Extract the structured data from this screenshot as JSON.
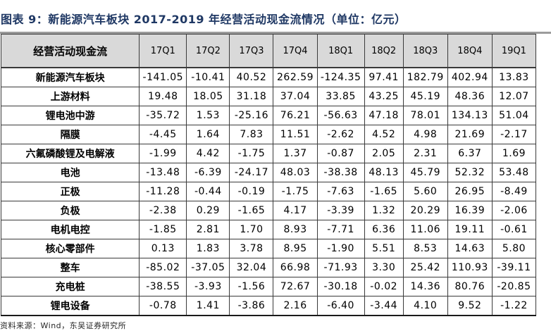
{
  "title": "图表 9：新能源汽车板块 2017-2019 年经营活动现金流情况（单位：亿元）",
  "source_note": "资料来源：Wind，东吴证券研究所",
  "colors": {
    "title_navy": "#1F3864",
    "header_bg": "#D9D9D9",
    "border_dark": "#3a3a3a",
    "rule_gray": "#9c9c9c"
  },
  "table": {
    "header_label": "经营活动现金流",
    "columns": [
      "17Q1",
      "17Q2",
      "17Q3",
      "17Q4",
      "18Q1",
      "18Q2",
      "18Q3",
      "18Q4",
      "19Q1"
    ],
    "rows": [
      {
        "label": "新能源汽车板块",
        "values": [
          "-141.05",
          "-10.41",
          "40.52",
          "262.59",
          "-124.35",
          "97.41",
          "182.79",
          "402.94",
          "13.83"
        ]
      },
      {
        "label": "上游材料",
        "values": [
          "19.48",
          "18.05",
          "31.18",
          "37.04",
          "33.85",
          "43.25",
          "45.19",
          "48.36",
          "12.07"
        ]
      },
      {
        "label": "锂电池中游",
        "values": [
          "-35.72",
          "1.53",
          "-25.16",
          "76.21",
          "-56.63",
          "47.18",
          "78.01",
          "134.13",
          "51.04"
        ]
      },
      {
        "label": "隔膜",
        "values": [
          "-4.45",
          "1.64",
          "7.83",
          "11.51",
          "-2.62",
          "4.52",
          "4.98",
          "21.69",
          "-2.17"
        ]
      },
      {
        "label": "六氟磷酸锂及电解液",
        "values": [
          "-1.99",
          "4.42",
          "-1.75",
          "1.37",
          "-0.87",
          "2.05",
          "2.31",
          "6.37",
          "1.69"
        ]
      },
      {
        "label": "电池",
        "values": [
          "-13.48",
          "-6.39",
          "-24.17",
          "48.03",
          "-38.38",
          "48.13",
          "45.79",
          "52.32",
          "53.48"
        ]
      },
      {
        "label": "正极",
        "values": [
          "-11.28",
          "-0.44",
          "-0.19",
          "-1.75",
          "-7.63",
          "-1.65",
          "5.60",
          "26.95",
          "-8.49"
        ]
      },
      {
        "label": "负极",
        "values": [
          "-2.38",
          "0.29",
          "-1.65",
          "4.17",
          "-3.39",
          "1.32",
          "20.29",
          "16.39",
          "-2.06"
        ]
      },
      {
        "label": "电机电控",
        "values": [
          "-1.85",
          "2.81",
          "1.70",
          "8.93",
          "-7.71",
          "6.36",
          "11.06",
          "19.11",
          "-0.61"
        ]
      },
      {
        "label": "核心零部件",
        "values": [
          "0.13",
          "1.83",
          "3.78",
          "8.95",
          "-1.90",
          "5.51",
          "8.53",
          "14.63",
          "5.80"
        ]
      },
      {
        "label": "整车",
        "values": [
          "-85.02",
          "-37.05",
          "32.04",
          "66.98",
          "-71.93",
          "3.30",
          "25.42",
          "110.93",
          "-39.11"
        ]
      },
      {
        "label": "充电桩",
        "values": [
          "-38.55",
          "-3.93",
          "-1.56",
          "72.67",
          "-30.18",
          "-0.02",
          "14.36",
          "80.76",
          "-20.85"
        ]
      },
      {
        "label": "锂电设备",
        "values": [
          "-0.78",
          "1.41",
          "-3.86",
          "2.16",
          "-6.40",
          "-3.44",
          "4.10",
          "9.52",
          "-1.22"
        ]
      }
    ]
  }
}
